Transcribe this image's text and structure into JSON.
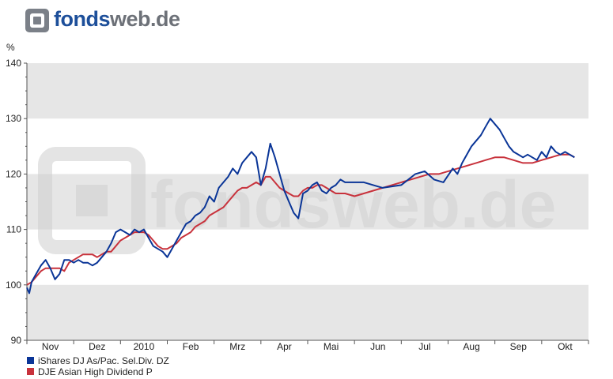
{
  "logo": {
    "part1": "fonds",
    "part2": "web.de"
  },
  "watermark": "fondsweb.de",
  "chart_data": {
    "type": "line",
    "ylabel": "%",
    "ylim": [
      90,
      140
    ],
    "y_ticks": [
      "140",
      "130",
      "120",
      "110",
      "100",
      "90"
    ],
    "x_tick_labels": [
      "Nov",
      "Dez",
      "2010",
      "Feb",
      "Mrz",
      "Apr",
      "Mai",
      "Jun",
      "Jul",
      "Aug",
      "Sep",
      "Okt"
    ],
    "x_range": [
      0,
      12
    ],
    "grid": "horizontal bands",
    "legend_position": "bottom-left",
    "series": [
      {
        "name": "iShares DJ As/Pac. Sel.Div. DZ",
        "color": "#0a3597",
        "x": [
          0,
          0.05,
          0.1,
          0.2,
          0.3,
          0.4,
          0.5,
          0.6,
          0.7,
          0.8,
          0.9,
          1.0,
          1.1,
          1.2,
          1.3,
          1.4,
          1.5,
          1.6,
          1.7,
          1.8,
          1.9,
          2.0,
          2.1,
          2.2,
          2.3,
          2.4,
          2.5,
          2.6,
          2.7,
          2.8,
          2.9,
          3.0,
          3.1,
          3.2,
          3.3,
          3.4,
          3.5,
          3.6,
          3.7,
          3.8,
          3.9,
          4.0,
          4.1,
          4.2,
          4.3,
          4.4,
          4.5,
          4.6,
          4.7,
          4.8,
          4.9,
          5.0,
          5.1,
          5.2,
          5.3,
          5.4,
          5.5,
          5.6,
          5.7,
          5.8,
          5.9,
          6.0,
          6.1,
          6.2,
          6.3,
          6.4,
          6.5,
          6.6,
          6.7,
          6.8,
          7.2,
          7.6,
          8.0,
          8.3,
          8.5,
          8.7,
          8.9,
          9.1,
          9.2,
          9.3,
          9.5,
          9.7,
          9.8,
          9.9,
          10.0,
          10.1,
          10.2,
          10.3,
          10.4,
          10.5,
          10.6,
          10.7,
          10.8,
          10.9,
          11.0,
          11.1,
          11.2,
          11.3,
          11.4,
          11.5,
          11.6,
          11.7
        ],
        "values": [
          99.5,
          98.5,
          100.5,
          102,
          103.5,
          104.5,
          103,
          101,
          102,
          104.5,
          104.5,
          104,
          104.5,
          104,
          104,
          103.5,
          104,
          105,
          106,
          107.5,
          109.5,
          110,
          109.5,
          109,
          110,
          109.5,
          110,
          108.5,
          107,
          106.5,
          106,
          105,
          106.5,
          108,
          109.5,
          111,
          111.5,
          112.5,
          113,
          114,
          116,
          115,
          117.5,
          118.5,
          119.5,
          121,
          120,
          122,
          123,
          124,
          123,
          118,
          121,
          125.5,
          123,
          120,
          117,
          115,
          113,
          112,
          116.5,
          117,
          118,
          118.5,
          117,
          116.5,
          117.5,
          118,
          119,
          118.5,
          118.5,
          117.5,
          118,
          120,
          120.5,
          119,
          118.5,
          121,
          120,
          122,
          125,
          127,
          128.5,
          130,
          129,
          128,
          126.5,
          125,
          124,
          123.5,
          123,
          123.5,
          123,
          122.5,
          124,
          123,
          125,
          124,
          123.5,
          124,
          123.5,
          123
        ],
        "show_name": true
      },
      {
        "name": "DJE Asian High Dividend P",
        "color": "#c8323c",
        "x": [
          0,
          0.1,
          0.2,
          0.3,
          0.4,
          0.5,
          0.6,
          0.7,
          0.8,
          0.9,
          1.0,
          1.1,
          1.2,
          1.3,
          1.4,
          1.5,
          1.6,
          1.7,
          1.8,
          1.9,
          2.0,
          2.1,
          2.2,
          2.3,
          2.4,
          2.5,
          2.6,
          2.7,
          2.8,
          2.9,
          3.0,
          3.1,
          3.2,
          3.3,
          3.4,
          3.5,
          3.6,
          3.7,
          3.8,
          3.9,
          4.0,
          4.1,
          4.2,
          4.3,
          4.4,
          4.5,
          4.6,
          4.7,
          4.8,
          4.9,
          5.0,
          5.1,
          5.2,
          5.3,
          5.4,
          5.5,
          5.6,
          5.7,
          5.8,
          5.9,
          6.0,
          6.1,
          6.2,
          6.3,
          6.4,
          6.5,
          6.6,
          6.7,
          6.8,
          7.0,
          7.2,
          7.4,
          7.6,
          7.8,
          8.0,
          8.2,
          8.4,
          8.6,
          8.8,
          9.0,
          9.2,
          9.4,
          9.6,
          9.8,
          10.0,
          10.2,
          10.4,
          10.6,
          10.8,
          11.0,
          11.2,
          11.4,
          11.6,
          11.7
        ],
        "values": [
          100,
          100.5,
          101.5,
          102.5,
          103,
          103,
          103,
          103,
          102.5,
          104,
          104.5,
          105,
          105.5,
          105.5,
          105.5,
          105,
          105.5,
          106,
          106,
          107,
          108,
          108.5,
          109,
          109.5,
          109.5,
          109.5,
          109,
          108,
          107,
          106.5,
          106.5,
          107,
          107.5,
          108.5,
          109,
          109.5,
          110.5,
          111,
          111.5,
          112.5,
          113,
          113.5,
          114,
          115,
          116,
          117,
          117.5,
          117.5,
          118,
          118.5,
          118,
          119.5,
          119.5,
          118.5,
          117.5,
          117,
          116.5,
          116,
          116,
          117,
          117.5,
          117.5,
          118,
          118,
          117.5,
          117,
          116.5,
          116.5,
          116.5,
          116,
          116.5,
          117,
          117.5,
          118,
          118.5,
          119,
          119.5,
          120,
          120,
          120.5,
          121,
          121.5,
          122,
          122.5,
          123,
          123,
          122.5,
          122,
          122,
          122.5,
          123,
          123.5,
          123.5,
          123
        ],
        "show_name": true
      }
    ]
  }
}
